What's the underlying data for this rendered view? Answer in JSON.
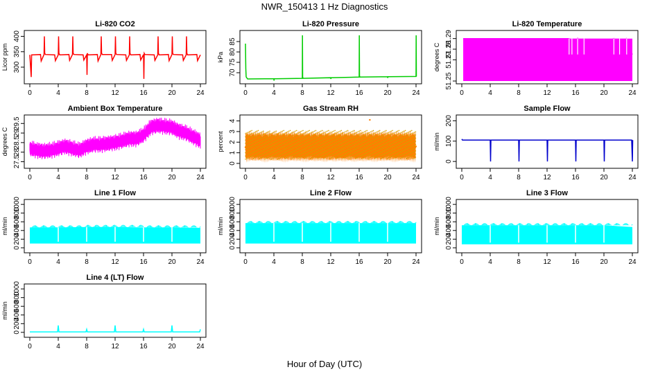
{
  "figure": {
    "title": "NWR_150413  1 Hz Diagnostics",
    "xlabel": "Hour of Day (UTC)"
  },
  "chart_data": [
    {
      "type": "line",
      "title": "Li-820 CO2",
      "xlabel": "",
      "ylabel": "Licor ppm",
      "xlim": [
        0,
        24
      ],
      "ylim": [
        255,
        410
      ],
      "xticks": [
        0,
        4,
        8,
        12,
        16,
        20,
        24
      ],
      "yticks": [
        300,
        350,
        400
      ],
      "color": "#ff0000",
      "series": [
        {
          "x": [
            0,
            0.2,
            0.25,
            0.3,
            1.5,
            1.6,
            2,
            2.05,
            2.1,
            2.2,
            3.5,
            3.6,
            4,
            4.05,
            4.1,
            4.2,
            5.5,
            5.6,
            6,
            6.05,
            6.1,
            6.2,
            7.5,
            7.6,
            8,
            8.05,
            8.1,
            8.2,
            9.5,
            9.6,
            10,
            10.05,
            10.1,
            10.2,
            11.5,
            11.6,
            12,
            12.05,
            12.1,
            12.2,
            13.5,
            13.6,
            14,
            14.05,
            14.1,
            14.2,
            15.5,
            15.6,
            16,
            16.05,
            16.1,
            16.2,
            17.5,
            17.6,
            18,
            18.05,
            18.1,
            18.2,
            19.5,
            19.6,
            20,
            20.05,
            20.1,
            20.2,
            21.5,
            21.6,
            22,
            22.05,
            22.1,
            22.2,
            23.5,
            23.6,
            24
          ],
          "y": [
            340,
            268,
            340,
            340,
            341,
            320,
            341,
            400,
            345,
            341,
            340,
            321,
            340,
            400,
            345,
            340,
            341,
            322,
            341,
            400,
            345,
            341,
            340,
            323,
            340,
            275,
            345,
            340,
            341,
            320,
            341,
            400,
            345,
            341,
            341,
            322,
            341,
            400,
            345,
            341,
            340,
            322,
            340,
            400,
            345,
            340,
            341,
            323,
            341,
            262,
            345,
            341,
            340,
            322,
            340,
            400,
            345,
            340,
            341,
            321,
            341,
            400,
            345,
            341,
            340,
            322,
            340,
            400,
            345,
            340,
            341,
            321,
            340
          ]
        }
      ]
    },
    {
      "type": "line",
      "title": "Li-820 Pressure",
      "xlabel": "",
      "ylabel": "kPa",
      "xlim": [
        0,
        24
      ],
      "ylim": [
        66,
        89
      ],
      "xticks": [
        0,
        4,
        8,
        12,
        16,
        20,
        24
      ],
      "yticks": [
        70,
        75,
        80,
        85
      ],
      "color": "#00cc00",
      "series": [
        {
          "x": [
            0,
            0.05,
            0.1,
            0.3,
            4,
            4.02,
            4.05,
            8,
            8.02,
            8.05,
            8.1,
            12,
            12.02,
            12.05,
            16,
            16.02,
            16.05,
            16.1,
            20,
            20.02,
            20.05,
            24,
            24.02,
            24.05
          ],
          "y": [
            84,
            72,
            68,
            67,
            67.1,
            66.2,
            67.1,
            67.3,
            88,
            68,
            67.3,
            67.6,
            67,
            67.6,
            67.9,
            88,
            68.5,
            67.9,
            68.1,
            67.5,
            68.1,
            68.2,
            88,
            68.2
          ]
        }
      ]
    },
    {
      "type": "line",
      "title": "Li-820 Temperature",
      "xlabel": "",
      "ylabel": "degrees C",
      "xlim": [
        0,
        24
      ],
      "ylim": [
        51.25,
        51.295
      ],
      "xticks": [
        0,
        4,
        8,
        12,
        16,
        20,
        24
      ],
      "yticks": [
        51.25,
        51.27,
        51.28,
        51.29
      ],
      "color": "#ff00ff",
      "series": [
        {
          "x": [
            0.2,
            15.1,
            15.5,
            16.3,
            17.2,
            21.4,
            22.2,
            23.2,
            24
          ],
          "y": [
            51.29,
            51.29,
            51.275,
            51.29,
            51.275,
            51.29,
            51.275,
            51.29,
            51.275
          ]
        }
      ]
    },
    {
      "type": "line",
      "title": "Ambient Box Temperature",
      "xlabel": "",
      "ylabel": "degrees C",
      "xlim": [
        0,
        24
      ],
      "ylim": [
        27.3,
        29.8
      ],
      "xticks": [
        0,
        4,
        8,
        12,
        16,
        20,
        24
      ],
      "yticks": [
        27.5,
        28.0,
        28.5,
        29.0,
        29.5
      ],
      "color": "#ff00ff",
      "series": [
        {
          "x": [
            0,
            1,
            2,
            3,
            4,
            5,
            6,
            7,
            8,
            9,
            10,
            11,
            12,
            13,
            14,
            15,
            16,
            17,
            18,
            19,
            20,
            21,
            22,
            23,
            24
          ],
          "y": [
            28.2,
            28.1,
            28.05,
            28.1,
            28.2,
            28.3,
            28.2,
            28.1,
            28.3,
            28.4,
            28.4,
            28.45,
            28.5,
            28.6,
            28.7,
            28.7,
            28.9,
            29.3,
            29.4,
            29.35,
            29.3,
            29.1,
            29.0,
            28.8,
            28.6
          ]
        }
      ]
    },
    {
      "type": "scatter",
      "title": "Gas Stream RH",
      "xlabel": "",
      "ylabel": "percent",
      "xlim": [
        0,
        24
      ],
      "ylim": [
        -0.2,
        4.3
      ],
      "xticks": [
        0,
        4,
        8,
        12,
        16,
        20,
        24
      ],
      "yticks": [
        0,
        1,
        2,
        3,
        4
      ],
      "color": "#ff7f00",
      "series": [
        {
          "x": [
            0,
            2,
            4,
            6,
            8,
            10,
            12,
            14,
            16,
            17.5,
            18,
            20,
            22,
            24
          ],
          "y": [
            1.5,
            1.6,
            1.5,
            1.6,
            1.5,
            1.6,
            1.5,
            1.6,
            1.6,
            4.1,
            1.6,
            1.6,
            1.5,
            1.6
          ]
        }
      ]
    },
    {
      "type": "line",
      "title": "Sample Flow",
      "xlabel": "",
      "ylabel": "ml/min",
      "xlim": [
        0,
        24
      ],
      "ylim": [
        -20,
        215
      ],
      "xticks": [
        0,
        4,
        8,
        12,
        16,
        20,
        24
      ],
      "yticks": [
        0,
        100,
        200
      ],
      "color": "#0000cc",
      "series": [
        {
          "x": [
            0,
            0.1,
            4,
            4.05,
            4.1,
            8,
            8.05,
            8.1,
            12,
            12.05,
            12.1,
            16,
            16.05,
            16.1,
            20,
            20.05,
            20.1,
            23.9,
            24,
            24.05
          ],
          "y": [
            110,
            105,
            105,
            0,
            105,
            105,
            0,
            105,
            105,
            0,
            105,
            105,
            0,
            105,
            105,
            0,
            105,
            105,
            0,
            105
          ]
        }
      ]
    },
    {
      "type": "area",
      "title": "Line 1 Flow",
      "xlabel": "",
      "ylabel": "ml/min",
      "xlim": [
        0,
        24
      ],
      "ylim": [
        -50,
        1050
      ],
      "xticks": [
        0,
        4,
        8,
        12,
        16,
        20,
        24
      ],
      "yticks": [
        0,
        200,
        400,
        600,
        800,
        1000
      ],
      "color": "#00ffff",
      "series": [
        {
          "x": [
            0,
            4,
            8,
            12,
            16,
            20,
            24
          ],
          "y_low": [
            100,
            100,
            100,
            100,
            100,
            100,
            100
          ],
          "y_high": [
            470,
            470,
            480,
            480,
            470,
            470,
            460
          ]
        }
      ]
    },
    {
      "type": "area",
      "title": "Line 2 Flow",
      "xlabel": "",
      "ylabel": "ml/min",
      "xlim": [
        0,
        24
      ],
      "ylim": [
        -50,
        1050
      ],
      "xticks": [
        0,
        4,
        8,
        12,
        16,
        20,
        24
      ],
      "yticks": [
        0,
        200,
        400,
        600,
        800,
        1000
      ],
      "color": "#00ffff",
      "series": [
        {
          "x": [
            0,
            4,
            8,
            12,
            16,
            20,
            24
          ],
          "y_low": [
            100,
            100,
            100,
            100,
            100,
            100,
            100
          ],
          "y_high": [
            570,
            570,
            570,
            570,
            570,
            570,
            570
          ]
        }
      ]
    },
    {
      "type": "area",
      "title": "Line 3 Flow",
      "xlabel": "",
      "ylabel": "ml/min",
      "xlim": [
        0,
        24
      ],
      "ylim": [
        -50,
        1050
      ],
      "xticks": [
        0,
        4,
        8,
        12,
        16,
        20,
        24
      ],
      "yticks": [
        0,
        200,
        400,
        600,
        800,
        1000
      ],
      "color": "#00ffff",
      "series": [
        {
          "x": [
            0,
            4,
            8,
            12,
            16,
            20,
            24
          ],
          "y_low": [
            80,
            80,
            80,
            80,
            80,
            80,
            80
          ],
          "y_high": [
            520,
            520,
            520,
            520,
            520,
            520,
            480
          ]
        }
      ]
    },
    {
      "type": "line",
      "title": "Line 4 (LT) Flow",
      "xlabel": "",
      "ylabel": "ml/min",
      "xlim": [
        0,
        24
      ],
      "ylim": [
        -50,
        1050
      ],
      "xticks": [
        0,
        4,
        8,
        12,
        16,
        20,
        24
      ],
      "yticks": [
        0,
        200,
        400,
        600,
        800,
        1000
      ],
      "color": "#00ffff",
      "series": [
        {
          "x": [
            0,
            3.9,
            4,
            4.1,
            7.9,
            8,
            8.1,
            11.9,
            12,
            12.1,
            15.9,
            16,
            16.1,
            19.9,
            20,
            20.1,
            23.9,
            24
          ],
          "y": [
            10,
            10,
            160,
            10,
            10,
            70,
            10,
            10,
            160,
            10,
            10,
            70,
            10,
            10,
            160,
            10,
            10,
            70
          ]
        }
      ]
    }
  ]
}
